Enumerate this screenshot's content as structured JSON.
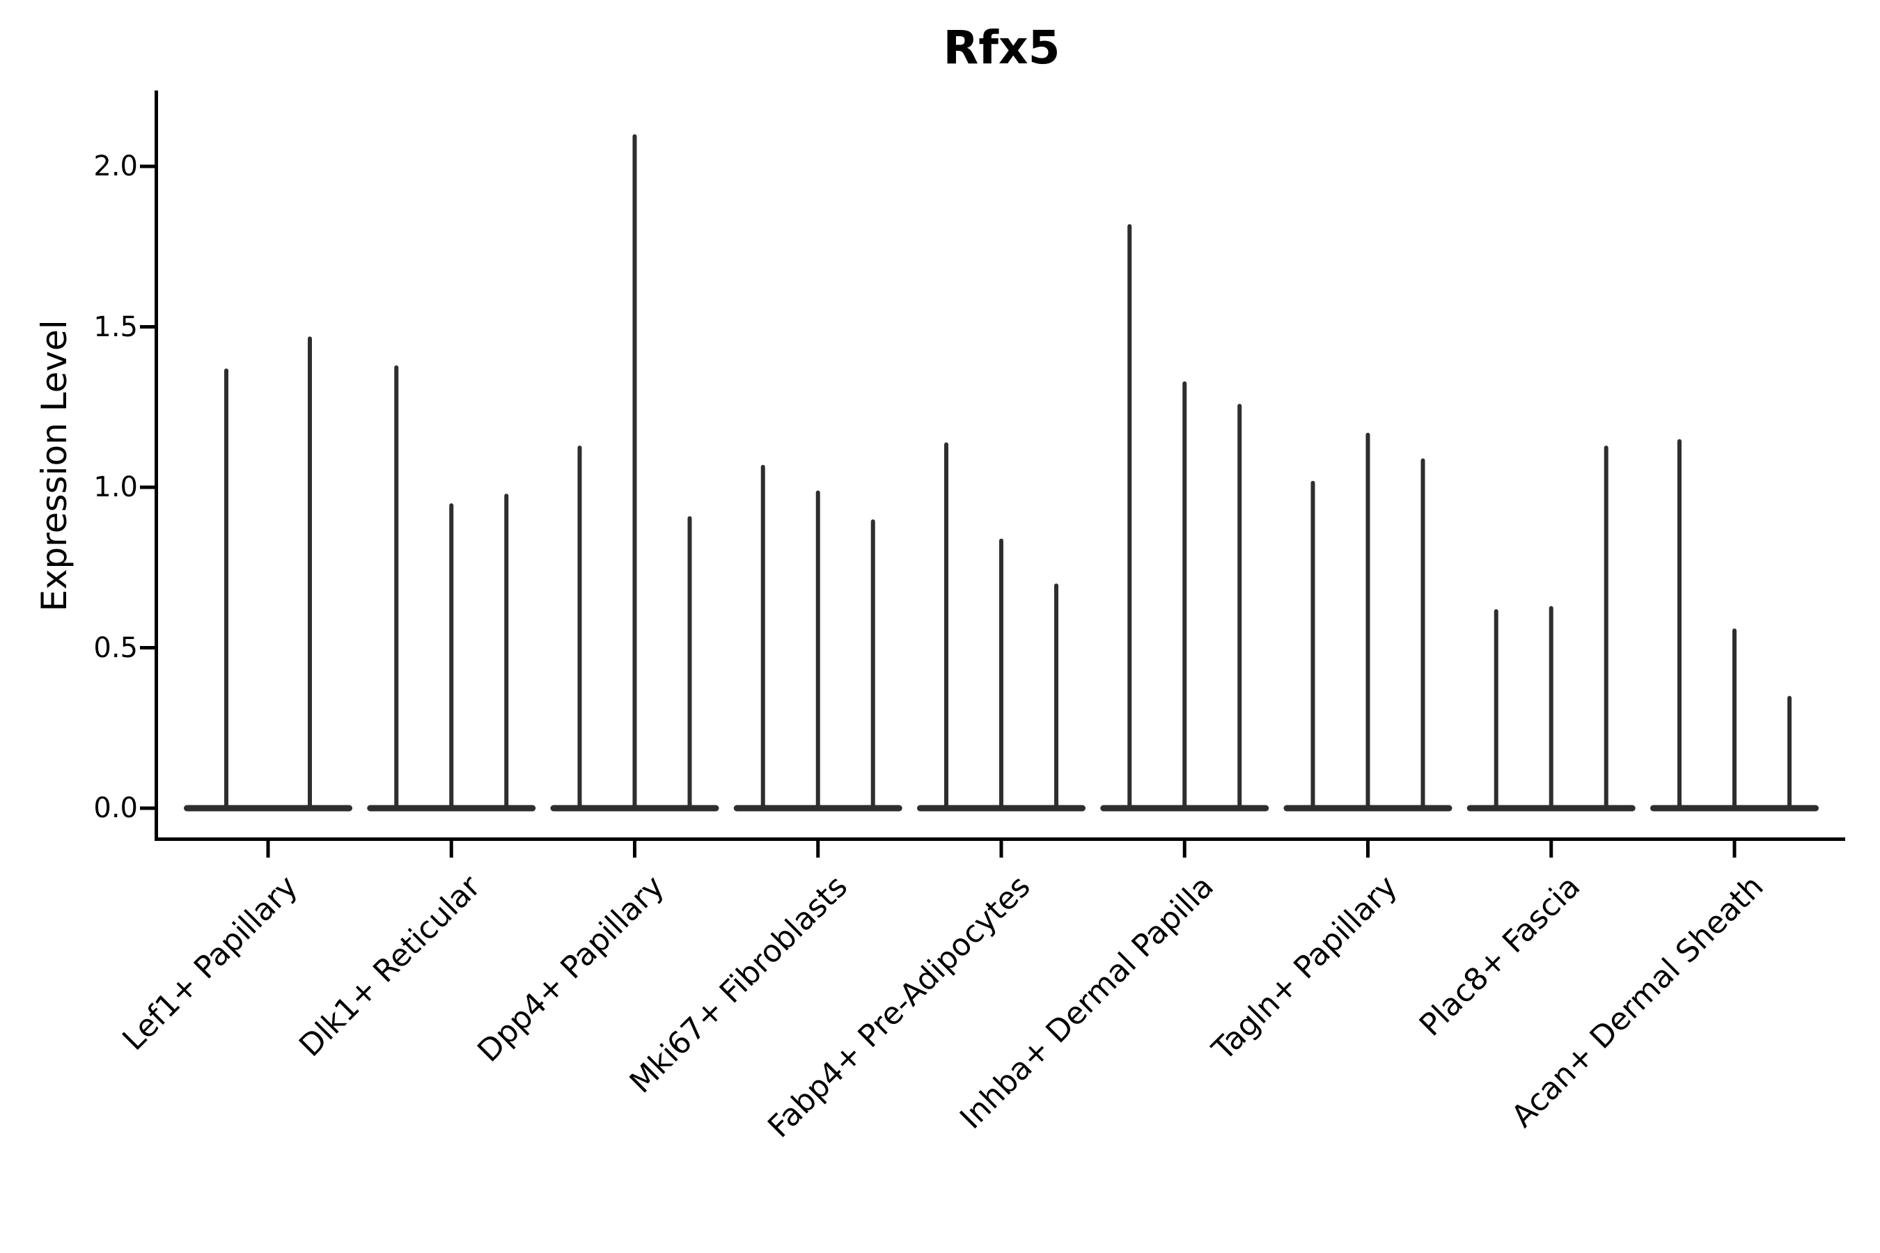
{
  "title": "Rfx5",
  "y_axis": {
    "label": "Expression Level",
    "tick_labels": [
      "0.0",
      "0.5",
      "1.0",
      "1.5",
      "2.0"
    ]
  },
  "x_axis": {
    "categories": [
      "Lef1+ Papillary",
      "Dlk1+ Reticular",
      "Dpp4+ Papillary",
      "Mki67+ Fibroblasts",
      "Fabp4+ Pre-Adipocytes",
      "Inhba+ Dermal Papilla",
      "Tagln+ Papillary",
      "Plac8+ Fascia",
      "Acan+ Dermal Sheath"
    ]
  },
  "chart_data": {
    "type": "violin",
    "title": "Rfx5",
    "xlabel": "",
    "ylabel": "Expression Level",
    "ylim": [
      0,
      2.24
    ],
    "yticks": [
      0.0,
      0.5,
      1.0,
      1.5,
      2.0
    ],
    "grid": false,
    "legend": false,
    "violin_color": "#2e2e2e",
    "categories": [
      "Lef1+ Papillary",
      "Dlk1+ Reticular",
      "Dpp4+ Papillary",
      "Mki67+ Fibroblasts",
      "Fabp4+ Pre-Adipocytes",
      "Inhba+ Dermal Papilla",
      "Tagln+ Papillary",
      "Plac8+ Fascia",
      "Acan+ Dermal Sheath"
    ],
    "series": [
      {
        "category": "Lef1+ Papillary",
        "spike_maxima": [
          1.37,
          1.47
        ]
      },
      {
        "category": "Dlk1+ Reticular",
        "spike_maxima": [
          1.38,
          0.95,
          0.98
        ]
      },
      {
        "category": "Dpp4+ Papillary",
        "spike_maxima": [
          1.13,
          2.1,
          0.91
        ]
      },
      {
        "category": "Mki67+ Fibroblasts",
        "spike_maxima": [
          1.07,
          0.99,
          0.9
        ]
      },
      {
        "category": "Fabp4+ Pre-Adipocytes",
        "spike_maxima": [
          1.14,
          0.84,
          0.7
        ]
      },
      {
        "category": "Inhba+ Dermal Papilla",
        "spike_maxima": [
          1.82,
          1.33,
          1.26
        ]
      },
      {
        "category": "Tagln+ Papillary",
        "spike_maxima": [
          1.02,
          1.17,
          1.09
        ]
      },
      {
        "category": "Plac8+ Fascia",
        "spike_maxima": [
          0.62,
          0.63,
          1.13
        ]
      },
      {
        "category": "Acan+ Dermal Sheath",
        "spike_maxima": [
          1.15,
          0.56,
          0.35
        ]
      }
    ],
    "note": "Sparse expression: each violin collapses to a flat lens at 0 with a thin spike reaching its listed maximum."
  }
}
